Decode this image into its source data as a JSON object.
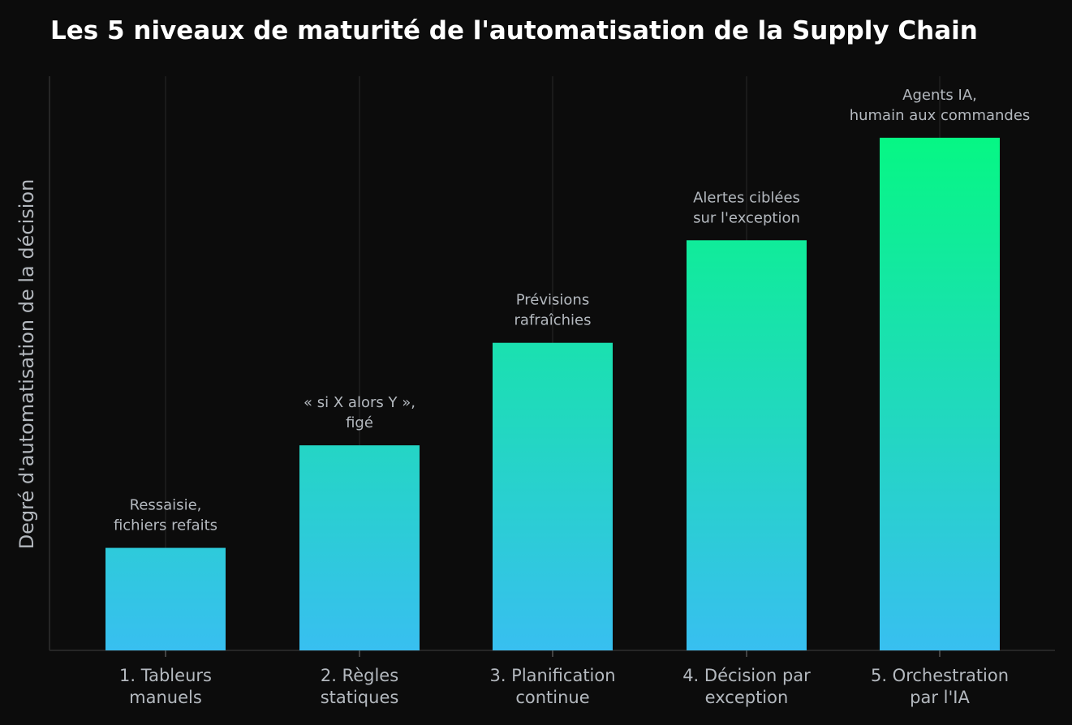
{
  "chart_data": {
    "type": "bar",
    "title": "Les 5 niveaux de maturité de l'automatisation de la Supply Chain",
    "xlabel": "",
    "ylabel": "Degré d'automatisation de la décision",
    "categories": [
      [
        "1. Tableurs",
        "manuels"
      ],
      [
        "2. Règles",
        "statiques"
      ],
      [
        "3. Planification",
        "continue"
      ],
      [
        "4. Décision par",
        "exception"
      ],
      [
        "5. Orchestration",
        "par l'IA"
      ]
    ],
    "values": [
      1,
      2,
      3,
      4,
      5
    ],
    "annotations": [
      [
        "Ressaisie,",
        "fichiers refaits"
      ],
      [
        "« si X alors Y »,",
        "figé"
      ],
      [
        "Prévisions",
        "rafraîchies"
      ],
      [
        "Alertes ciblées",
        "sur l'exception"
      ],
      [
        "Agents IA,",
        "humain aux commandes"
      ]
    ],
    "ylim": [
      0,
      5.6
    ],
    "grid": "vertical",
    "colors": {
      "background": "#0c0c0c",
      "bar_bottom": "#38bff0",
      "bar_top": "#06f784",
      "grid": "#1f1f1f",
      "axis": "#262626",
      "text": "#b4b9bf",
      "title": "#ffffff"
    }
  }
}
